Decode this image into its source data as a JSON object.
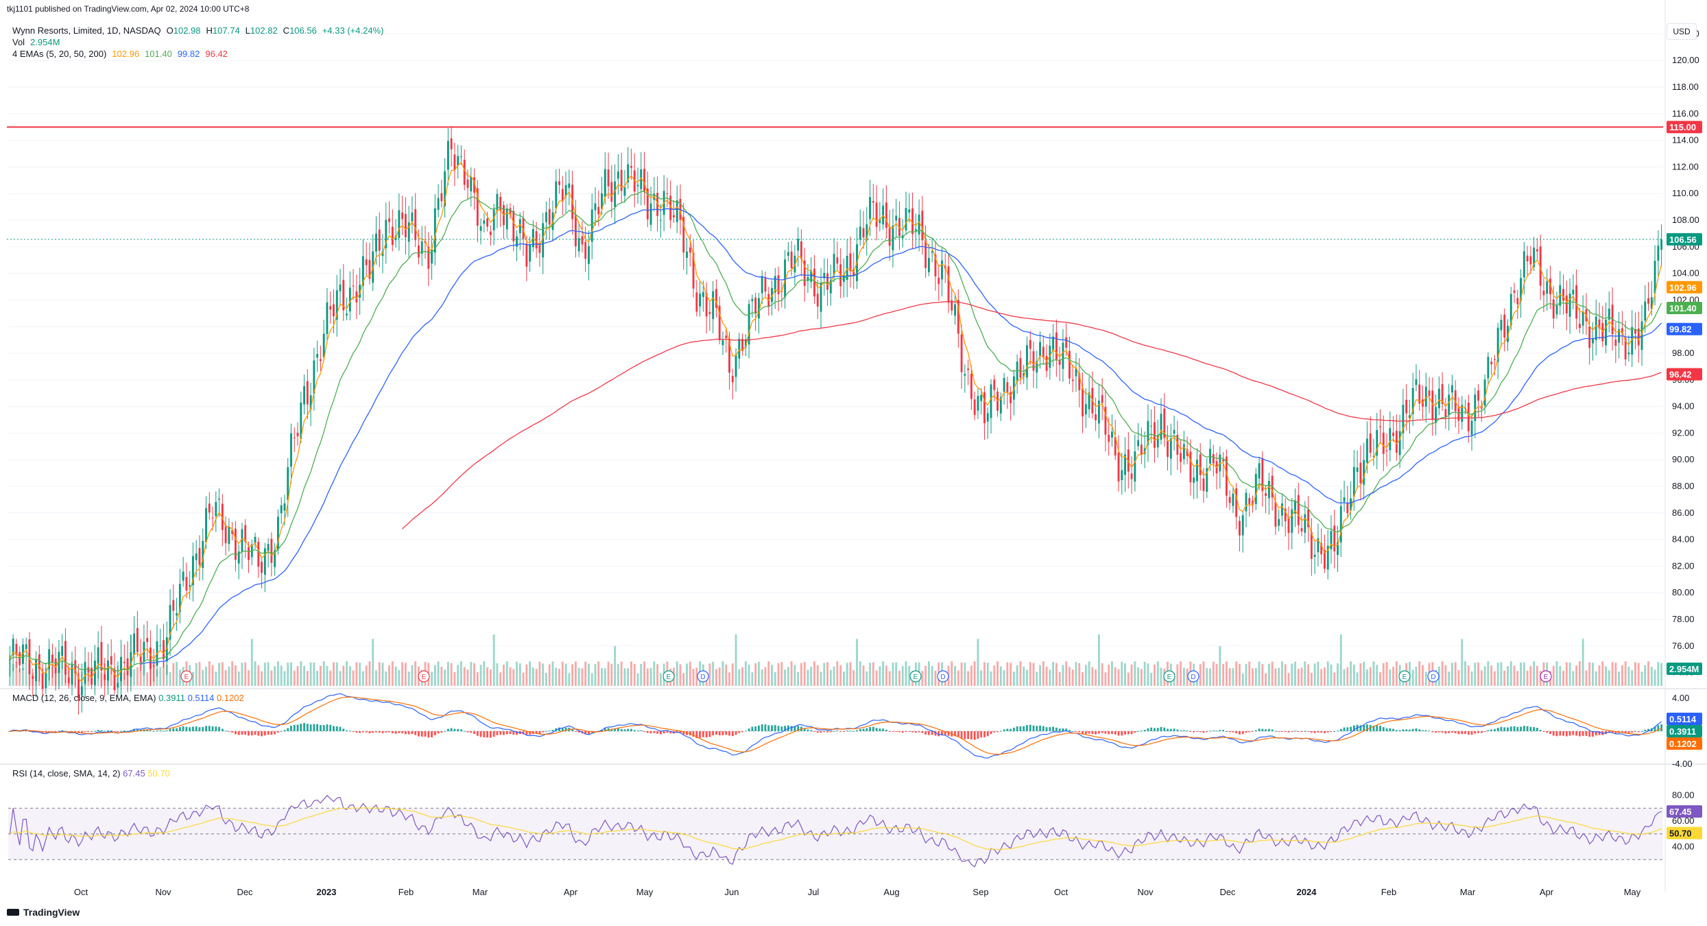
{
  "header": {
    "published": "tkj1101 published on TradingView.com, Apr 02, 2024 10:00 UTC+8"
  },
  "legend": {
    "symbol": "Wynn Resorts, Limited, 1D, NASDAQ",
    "o_label": "O",
    "o": "102.98",
    "h_label": "H",
    "h": "107.74",
    "l_label": "L",
    "l": "102.82",
    "c_label": "C",
    "c": "106.56",
    "change": "+4.33 (+4.24%)",
    "vol_label": "Vol",
    "vol": "2.954M",
    "ema_label": "4 EMAs (5, 20, 50, 200)",
    "ema5": "102.96",
    "ema20": "101.40",
    "ema50": "99.82",
    "ema200": "96.42"
  },
  "macd_legend": {
    "label": "MACD (12, 26, close, 9, EMA, EMA)",
    "hist": "0.3911",
    "macd": "0.5114",
    "signal": "0.1202"
  },
  "rsi_legend": {
    "label": "RSI (14, close, SMA, 14, 2)",
    "rsi": "67.45",
    "ma": "50.70"
  },
  "currency": "USD",
  "price_axis": [
    "122.00",
    "120.00",
    "118.00",
    "116.00",
    "114.00",
    "112.00",
    "110.00",
    "108.00",
    "106.00",
    "104.00",
    "102.00",
    "100.00",
    "98.00",
    "96.00",
    "94.00",
    "92.00",
    "90.00",
    "88.00",
    "86.00",
    "84.00",
    "82.00",
    "80.00",
    "78.00",
    "76.00",
    "74.00"
  ],
  "price_tags": [
    {
      "value": "115.00",
      "color": "#f23645"
    },
    {
      "value": "106.56",
      "color": "#089981"
    },
    {
      "value": "102.96",
      "color": "#ff9800"
    },
    {
      "value": "101.40",
      "color": "#4caf50"
    },
    {
      "value": "99.82",
      "color": "#2962ff"
    },
    {
      "value": "96.42",
      "color": "#f23645"
    },
    {
      "value": "2.954M",
      "color": "#089981"
    }
  ],
  "macd_axis": [
    "4.00",
    "0.00",
    "-4.00"
  ],
  "macd_tags": [
    {
      "value": "0.5114",
      "color": "#2962ff"
    },
    {
      "value": "0.3911",
      "color": "#089981"
    },
    {
      "value": "0.1202",
      "color": "#ff6d00"
    }
  ],
  "rsi_axis": [
    "80.00",
    "60.00",
    "40.00"
  ],
  "rsi_tags": [
    {
      "value": "67.45",
      "color": "#7e57c2"
    },
    {
      "value": "50.70",
      "color": "#fdd835"
    }
  ],
  "time_axis": [
    "Oct",
    "Nov",
    "Dec",
    "2023",
    "Feb",
    "Mar",
    "Apr",
    "May",
    "Jun",
    "Jul",
    "Aug",
    "Sep",
    "Oct",
    "Nov",
    "Dec",
    "2024",
    "Feb",
    "Mar",
    "Apr",
    "May"
  ],
  "event_markers": [
    {
      "t": "E",
      "color": "#f23645"
    },
    {
      "t": "E",
      "color": "#f23645"
    },
    {
      "t": "E",
      "color": "#089981"
    },
    {
      "t": "D",
      "color": "#2962ff"
    },
    {
      "t": "E",
      "color": "#089981"
    },
    {
      "t": "D",
      "color": "#2962ff"
    },
    {
      "t": "E",
      "color": "#089981"
    },
    {
      "t": "D",
      "color": "#2962ff"
    },
    {
      "t": "E",
      "color": "#089981"
    },
    {
      "t": "D",
      "color": "#2962ff"
    },
    {
      "t": "E",
      "color": "#9c27b0"
    }
  ],
  "footer": "TradingView",
  "colors": {
    "up": "#089981",
    "down": "#f23645",
    "ema5": "#ff9800",
    "ema20": "#4caf50",
    "ema50": "#2962ff",
    "ema200": "#f23645",
    "macd": "#2962ff",
    "signal": "#ff6d00",
    "rsi": "#7e57c2",
    "rsi_ma": "#fdd835"
  },
  "chart_data": {
    "type": "candlestick",
    "series_name": "Wynn Resorts, Limited, 1D, NASDAQ",
    "horizontal_line": 115.0,
    "ylim": [
      73,
      123
    ],
    "months": [
      "Oct",
      "Nov",
      "Dec",
      "2023",
      "Feb",
      "Mar",
      "Apr",
      "May",
      "Jun",
      "Jul",
      "Aug",
      "Sep",
      "Oct",
      "Nov",
      "Dec",
      "2024",
      "Feb",
      "Mar",
      "Apr"
    ],
    "close_anchors": [
      [
        0,
        75
      ],
      [
        12,
        74.5
      ],
      [
        25,
        73.8
      ],
      [
        38,
        75
      ],
      [
        48,
        76.5
      ],
      [
        55,
        82
      ],
      [
        62,
        86
      ],
      [
        70,
        84
      ],
      [
        76,
        82
      ],
      [
        82,
        85
      ],
      [
        90,
        95
      ],
      [
        100,
        102
      ],
      [
        110,
        104
      ],
      [
        115,
        108
      ],
      [
        122,
        107
      ],
      [
        128,
        106
      ],
      [
        135,
        113
      ],
      [
        140,
        112
      ],
      [
        145,
        106
      ],
      [
        150,
        110
      ],
      [
        158,
        105
      ],
      [
        165,
        109
      ],
      [
        170,
        110
      ],
      [
        175,
        106
      ],
      [
        182,
        110
      ],
      [
        188,
        112
      ],
      [
        195,
        109
      ],
      [
        200,
        110
      ],
      [
        205,
        107
      ],
      [
        210,
        103
      ],
      [
        215,
        101
      ],
      [
        220,
        97
      ],
      [
        225,
        100
      ],
      [
        232,
        103
      ],
      [
        240,
        105
      ],
      [
        248,
        103
      ],
      [
        255,
        104
      ],
      [
        262,
        108
      ],
      [
        270,
        108
      ],
      [
        278,
        107
      ],
      [
        285,
        104
      ],
      [
        292,
        97
      ],
      [
        298,
        93
      ],
      [
        305,
        96
      ],
      [
        312,
        97
      ],
      [
        318,
        99
      ],
      [
        325,
        96
      ],
      [
        332,
        94
      ],
      [
        338,
        90
      ],
      [
        345,
        90
      ],
      [
        352,
        93
      ],
      [
        360,
        89
      ],
      [
        368,
        90
      ],
      [
        375,
        86
      ],
      [
        382,
        88
      ],
      [
        390,
        86
      ],
      [
        398,
        84
      ],
      [
        405,
        83
      ],
      [
        412,
        90
      ],
      [
        420,
        91
      ],
      [
        428,
        94
      ],
      [
        436,
        95
      ],
      [
        444,
        93
      ],
      [
        452,
        96
      ],
      [
        460,
        103
      ],
      [
        465,
        105
      ],
      [
        470,
        103
      ],
      [
        478,
        101
      ],
      [
        485,
        100
      ],
      [
        492,
        99
      ],
      [
        500,
        100
      ],
      [
        505,
        106.56
      ]
    ],
    "ema_last": {
      "ema5": 102.96,
      "ema20": 101.4,
      "ema50": 99.82,
      "ema200": 96.42
    },
    "last": {
      "open": 102.98,
      "high": 107.74,
      "low": 102.82,
      "close": 106.56,
      "volume": "2.954M"
    },
    "macd_last": {
      "macd": 0.5114,
      "signal": 0.1202,
      "hist": 0.3911
    },
    "rsi_last": {
      "rsi": 67.45,
      "ma": 50.7
    }
  }
}
